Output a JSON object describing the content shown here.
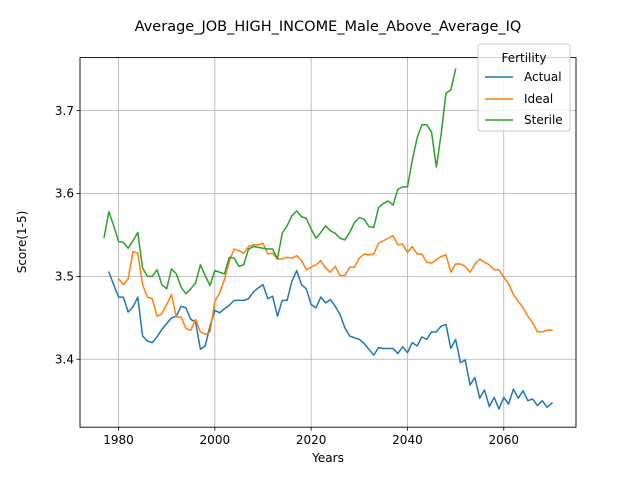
{
  "chart_data": {
    "type": "line",
    "title": "Average_JOB_HIGH_INCOME_Male_Above_Average_IQ",
    "xlabel": "Years",
    "ylabel": "Score(1-5)",
    "xlim": [
      1972,
      2075
    ],
    "ylim": [
      3.318,
      3.764
    ],
    "xticks": [
      1980,
      2000,
      2020,
      2040,
      2060
    ],
    "yticks": [
      3.4,
      3.5,
      3.6,
      3.7
    ],
    "grid": true,
    "legend": {
      "title": "Fertility",
      "placement": "top-right"
    },
    "series": [
      {
        "name": "Actual",
        "color": "#1f77b4",
        "x": [
          1978,
          1979,
          1980,
          1981,
          1982,
          1983,
          1984,
          1985,
          1986,
          1987,
          1988,
          1989,
          1990,
          1991,
          1992,
          1993,
          1994,
          1995,
          1996,
          1997,
          1998,
          1999,
          2000,
          2001,
          2002,
          2003,
          2004,
          2005,
          2006,
          2007,
          2008,
          2009,
          2010,
          2011,
          2012,
          2013,
          2014,
          2015,
          2016,
          2017,
          2018,
          2019,
          2020,
          2021,
          2022,
          2023,
          2024,
          2025,
          2026,
          2027,
          2028,
          2029,
          2030,
          2031,
          2032,
          2033,
          2034,
          2035,
          2036,
          2037,
          2038,
          2039,
          2040,
          2041,
          2042,
          2043,
          2044,
          2045,
          2046,
          2047,
          2048,
          2049,
          2050,
          2051,
          2052,
          2053,
          2054,
          2055,
          2056,
          2057,
          2058,
          2059,
          2060,
          2061,
          2062,
          2063,
          2064,
          2065,
          2066,
          2067,
          2068,
          2069,
          2070
        ],
        "values": [
          3.505,
          3.49,
          3.475,
          3.475,
          3.457,
          3.463,
          3.475,
          3.428,
          3.422,
          3.42,
          3.427,
          3.436,
          3.443,
          3.45,
          3.452,
          3.464,
          3.462,
          3.448,
          3.445,
          3.412,
          3.416,
          3.44,
          3.459,
          3.456,
          3.461,
          3.465,
          3.471,
          3.471,
          3.471,
          3.473,
          3.481,
          3.486,
          3.49,
          3.473,
          3.476,
          3.452,
          3.471,
          3.471,
          3.494,
          3.507,
          3.49,
          3.485,
          3.466,
          3.462,
          3.475,
          3.468,
          3.472,
          3.464,
          3.454,
          3.438,
          3.428,
          3.426,
          3.424,
          3.419,
          3.412,
          3.405,
          3.414,
          3.413,
          3.413,
          3.413,
          3.407,
          3.415,
          3.408,
          3.42,
          3.416,
          3.427,
          3.424,
          3.433,
          3.433,
          3.44,
          3.442,
          3.413,
          3.424,
          3.396,
          3.399,
          3.369,
          3.378,
          3.353,
          3.363,
          3.343,
          3.354,
          3.34,
          3.354,
          3.346,
          3.364,
          3.353,
          3.362,
          3.35,
          3.352,
          3.344,
          3.35,
          3.342,
          3.347
        ]
      },
      {
        "name": "Ideal",
        "color": "#ff7f0e",
        "x": [
          1980,
          1981,
          1982,
          1983,
          1984,
          1985,
          1986,
          1987,
          1988,
          1989,
          1990,
          1991,
          1992,
          1993,
          1994,
          1995,
          1996,
          1997,
          1998,
          1999,
          2000,
          2001,
          2002,
          2003,
          2004,
          2005,
          2006,
          2007,
          2008,
          2009,
          2010,
          2011,
          2012,
          2013,
          2014,
          2015,
          2016,
          2017,
          2018,
          2019,
          2020,
          2021,
          2022,
          2023,
          2024,
          2025,
          2026,
          2027,
          2028,
          2029,
          2030,
          2031,
          2032,
          2033,
          2034,
          2035,
          2036,
          2037,
          2038,
          2039,
          2040,
          2041,
          2042,
          2043,
          2044,
          2045,
          2046,
          2047,
          2048,
          2049,
          2050,
          2051,
          2052,
          2053,
          2054,
          2055,
          2056,
          2057,
          2058,
          2059,
          2060,
          2061,
          2062,
          2063,
          2064,
          2065,
          2066,
          2067,
          2068,
          2069,
          2070
        ],
        "values": [
          3.497,
          3.49,
          3.497,
          3.53,
          3.528,
          3.49,
          3.475,
          3.473,
          3.452,
          3.455,
          3.466,
          3.478,
          3.451,
          3.451,
          3.437,
          3.435,
          3.448,
          3.433,
          3.43,
          3.433,
          3.47,
          3.48,
          3.496,
          3.518,
          3.533,
          3.531,
          3.528,
          3.536,
          3.538,
          3.538,
          3.54,
          3.527,
          3.528,
          3.521,
          3.521,
          3.523,
          3.522,
          3.525,
          3.519,
          3.508,
          3.511,
          3.514,
          3.519,
          3.51,
          3.505,
          3.512,
          3.501,
          3.501,
          3.511,
          3.511,
          3.522,
          3.527,
          3.526,
          3.527,
          3.54,
          3.543,
          3.546,
          3.549,
          3.538,
          3.539,
          3.529,
          3.536,
          3.527,
          3.527,
          3.517,
          3.516,
          3.52,
          3.524,
          3.526,
          3.505,
          3.515,
          3.515,
          3.512,
          3.505,
          3.515,
          3.521,
          3.517,
          3.514,
          3.508,
          3.508,
          3.499,
          3.491,
          3.478,
          3.47,
          3.462,
          3.452,
          3.444,
          3.433,
          3.433,
          3.435,
          3.435
        ]
      },
      {
        "name": "Sterile",
        "color": "#2ca02c",
        "x": [
          1977,
          1978,
          1979,
          1980,
          1981,
          1982,
          1983,
          1984,
          1985,
          1986,
          1987,
          1988,
          1989,
          1990,
          1991,
          1992,
          1993,
          1994,
          1995,
          1996,
          1997,
          1998,
          1999,
          2000,
          2001,
          2002,
          2003,
          2004,
          2005,
          2006,
          2007,
          2008,
          2009,
          2010,
          2011,
          2012,
          2013,
          2014,
          2015,
          2016,
          2017,
          2018,
          2019,
          2020,
          2021,
          2022,
          2023,
          2024,
          2025,
          2026,
          2027,
          2028,
          2029,
          2030,
          2031,
          2032,
          2033,
          2034,
          2035,
          2036,
          2037,
          2038,
          2039,
          2040,
          2041,
          2042,
          2043,
          2044,
          2045,
          2046,
          2047,
          2048,
          2049,
          2050
        ],
        "values": [
          3.547,
          3.578,
          3.561,
          3.542,
          3.541,
          3.534,
          3.543,
          3.553,
          3.51,
          3.5,
          3.5,
          3.508,
          3.49,
          3.485,
          3.509,
          3.503,
          3.487,
          3.479,
          3.485,
          3.492,
          3.514,
          3.501,
          3.489,
          3.507,
          3.505,
          3.503,
          3.523,
          3.522,
          3.512,
          3.514,
          3.533,
          3.536,
          3.535,
          3.534,
          3.533,
          3.533,
          3.521,
          3.552,
          3.561,
          3.573,
          3.579,
          3.572,
          3.57,
          3.557,
          3.546,
          3.553,
          3.561,
          3.555,
          3.552,
          3.546,
          3.544,
          3.553,
          3.565,
          3.571,
          3.569,
          3.56,
          3.559,
          3.583,
          3.588,
          3.591,
          3.586,
          3.605,
          3.608,
          3.608,
          3.64,
          3.667,
          3.683,
          3.683,
          3.674,
          3.632,
          3.672,
          3.721,
          3.725,
          3.75
        ]
      }
    ]
  }
}
